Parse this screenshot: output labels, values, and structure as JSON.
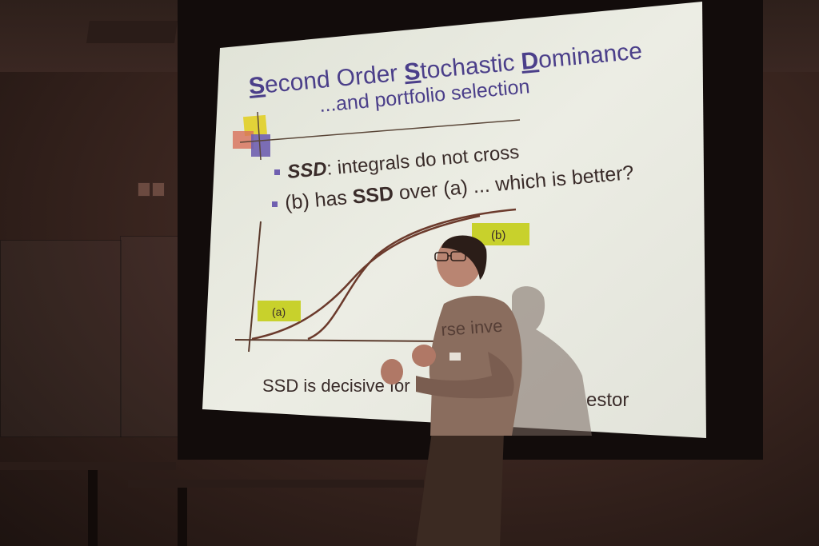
{
  "slide": {
    "title_first": "S",
    "title_rest1": "econd Order ",
    "title_second": "S",
    "title_rest2": "tochastic ",
    "title_third": "D",
    "title_rest3": "ominance",
    "subtitle": "...and portfolio selection",
    "bullet1_bold": "SSD",
    "bullet1_rest": ": integrals do not cross",
    "bullet2_pre": "(b) has ",
    "bullet2_bold": "SSD",
    "bullet2_post": " over (a) ... which is better?",
    "label_a": "(a)",
    "label_b": "(b)",
    "footer_left": "SSD is decisive for",
    "footer_right": "estor",
    "shirt_text": "rse inve"
  },
  "colors": {
    "slide_bg": "#e6e8e0",
    "title": "#4b3f8a",
    "label_box": "#c8d12c",
    "curve": "#6b3a2c",
    "text": "#3a2c2a"
  }
}
